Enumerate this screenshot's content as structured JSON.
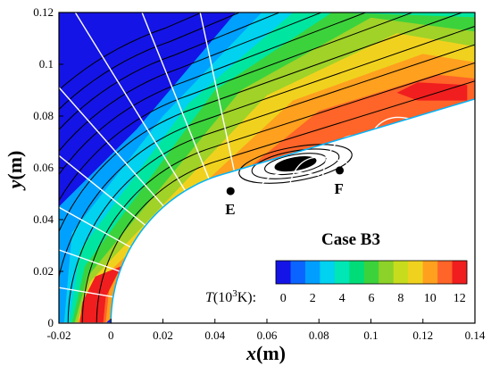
{
  "chart_data": {
    "type": "heatmap",
    "case_label": "Case B3",
    "xlim": [
      -0.02,
      0.14
    ],
    "ylim": [
      0,
      0.12
    ],
    "x_ticks": [
      "-0.02",
      "0",
      "0.02",
      "0.04",
      "0.06",
      "0.08",
      "0.1",
      "0.12",
      "0.14"
    ],
    "y_ticks": [
      "0",
      "0.02",
      "0.04",
      "0.06",
      "0.08",
      "0.1",
      "0.12"
    ],
    "xlabel": {
      "var": "x",
      "unit": "(m)"
    },
    "ylabel": {
      "var": "y",
      "unit": "(m)"
    },
    "colorbar": {
      "title_var": "T",
      "title_unit": "(10",
      "title_exp": "3",
      "title_end": "K):",
      "min": 0,
      "max": 13,
      "ticks": [
        "0",
        "2",
        "4",
        "6",
        "8",
        "10",
        "12"
      ],
      "colors": [
        "#1414e6",
        "#0a64ff",
        "#009fff",
        "#00d2f0",
        "#00e6b4",
        "#00dc78",
        "#3cd23c",
        "#8cd228",
        "#c8dc1e",
        "#f0d21e",
        "#ffa01e",
        "#ff6428",
        "#f01e1e"
      ]
    },
    "points": [
      {
        "label": "E",
        "x": 0.046,
        "y": 0.051
      },
      {
        "label": "F",
        "x": 0.088,
        "y": 0.059
      }
    ],
    "colors": {
      "freestream": "#1414e6",
      "streamline": "#000000",
      "orthogonal_lines": "#ffffff",
      "body": "#ffffff"
    }
  }
}
